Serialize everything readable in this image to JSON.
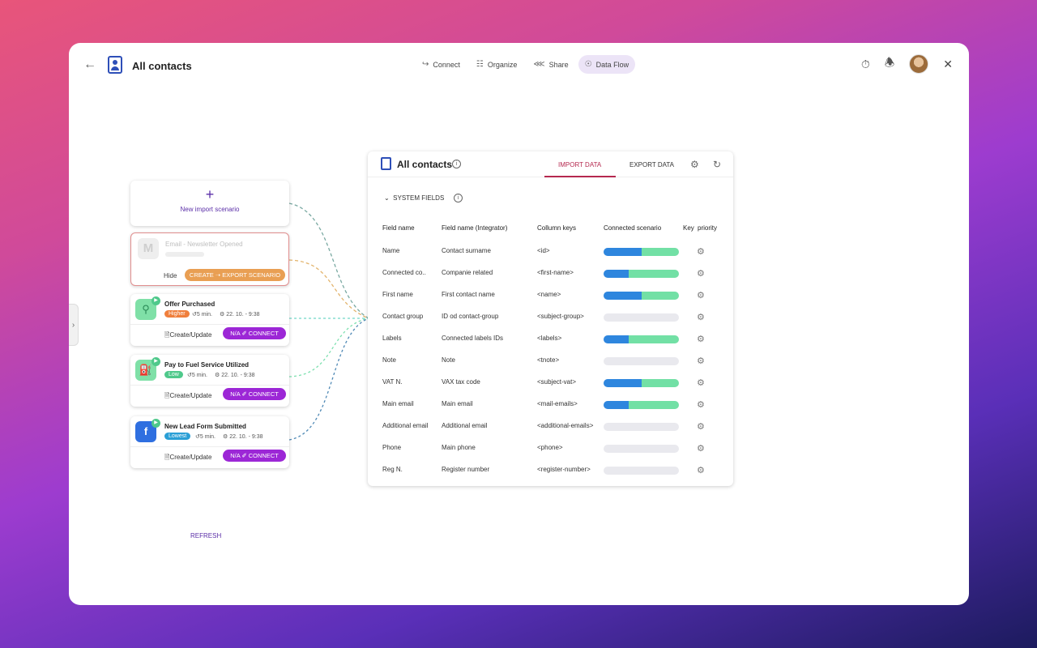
{
  "header": {
    "title": "All contacts",
    "nav": [
      {
        "label": "Connect",
        "icon": "connect-icon"
      },
      {
        "label": "Organize",
        "icon": "database-icon"
      },
      {
        "label": "Share",
        "icon": "share-icon"
      },
      {
        "label": "Data Flow",
        "icon": "dataflow-icon",
        "active": true
      }
    ]
  },
  "left": {
    "new_import": "New import scenario",
    "email_card": {
      "title": "Email - Newsletter Opened",
      "hide": "Hide",
      "button": "CREATE ➝ EXPORT SCENARIO"
    },
    "scenarios": [
      {
        "name": "Offer Purchased",
        "priority": "Higher",
        "priority_color": "#f07f3c",
        "time": "5 min.",
        "date": "22. 10. - 9:38",
        "action": "Create/Update",
        "connect": "N/A ✐ CONNECT"
      },
      {
        "name": "Pay to Fuel Service Utilized",
        "priority": "Low",
        "priority_color": "#4fc98b",
        "time": "5 min.",
        "date": "22. 10. - 9:38",
        "action": "Create/Update",
        "connect": "N/A ✐ CONNECT"
      },
      {
        "name": "New Lead Form Submitted",
        "priority": "Lowest",
        "priority_color": "#2a9fd6",
        "time": "5 min.",
        "date": "22. 10. - 9:38",
        "action": "Create/Update",
        "connect": "N/A ✐ CONNECT"
      }
    ],
    "refresh": "REFRESH"
  },
  "panel": {
    "title": "All contacts",
    "tabs": {
      "import": "IMPORT DATA",
      "export": "EXPORT DATA"
    },
    "section": "SYSTEM FIELDS",
    "columns": {
      "field": "Field name",
      "integrator": "Field name  (Integrator)",
      "keys": "Collumn keys",
      "scenario": "Connected scenario",
      "key": "Key",
      "priority": "priority"
    },
    "rows": [
      {
        "field": "Name",
        "integrator": "Contact surname",
        "key": "<id>",
        "blue": 0.5,
        "green": 0.5
      },
      {
        "field": "Connected co..",
        "integrator": "Companie related",
        "key": "<first-name>",
        "blue": 0.33,
        "green": 0.67
      },
      {
        "field": "First name",
        "integrator": "First contact name",
        "key": "<name>",
        "blue": 0.5,
        "green": 0.5
      },
      {
        "field": "Contact group",
        "integrator": "ID od contact-group",
        "key": "<subject-group>",
        "blue": 0,
        "green": 0
      },
      {
        "field": "Labels",
        "integrator": "Connected labels IDs",
        "key": "<labels>",
        "blue": 0.33,
        "green": 0.67
      },
      {
        "field": "Note",
        "integrator": "Note",
        "key": "<tnote>",
        "blue": 0,
        "green": 0
      },
      {
        "field": "VAT N.",
        "integrator": "VAX tax code",
        "key": "<subject-vat>",
        "blue": 0.5,
        "green": 0.5
      },
      {
        "field": "Main email",
        "integrator": "Main email",
        "key": "<mail-emails>",
        "blue": 0.33,
        "green": 0.67
      },
      {
        "field": "Additional email",
        "integrator": "Additional email",
        "key": "<additional-emails>",
        "blue": 0,
        "green": 0
      },
      {
        "field": "Phone",
        "integrator": "Main phone",
        "key": "<phone>",
        "blue": 0,
        "green": 0
      },
      {
        "field": "Reg N.",
        "integrator": "Register number",
        "key": "<register-number>",
        "blue": 0,
        "green": 0
      }
    ]
  }
}
